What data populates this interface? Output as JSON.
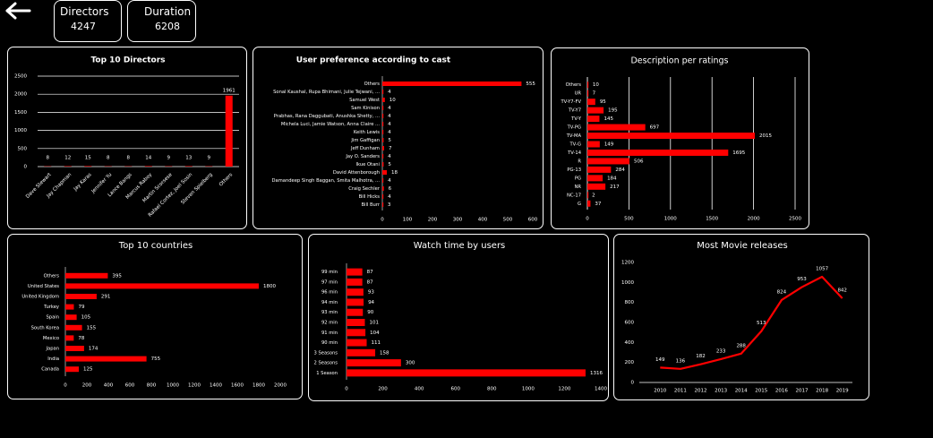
{
  "kpis": [
    {
      "label": "Directors",
      "value": "4247"
    },
    {
      "label": "Duration",
      "value": "6208"
    }
  ],
  "accent": "#ff0000",
  "chart_data": [
    {
      "id": "directors",
      "type": "bar",
      "orientation": "vertical",
      "title": "Top 10 Directors",
      "categories": [
        "Dave Stewart",
        "Jay Chapman",
        "Jay Karas",
        "Jennifer Yu",
        "Lance Bangs",
        "Marcus Raboy",
        "Martin Scorsese",
        "Rafael Cortez, Joel Sosin",
        "Steven Spielberg",
        "Others"
      ],
      "values": [
        8,
        12,
        15,
        8,
        8,
        14,
        9,
        13,
        9,
        1961
      ],
      "data_labels": [
        "8",
        "12",
        "15",
        "8",
        "8",
        "14",
        "9",
        "13",
        "9",
        "1961"
      ],
      "ylim": [
        0,
        2500
      ],
      "yticks": [
        0,
        500,
        1000,
        1500,
        2000,
        2500
      ]
    },
    {
      "id": "cast",
      "type": "bar",
      "orientation": "horizontal",
      "title": "User preference according to cast",
      "categories": [
        "Others",
        "Sonal Kaushal, Rupa Bhimani, Julie Tejwani, ...",
        "Samuel West",
        "Sam Kinison",
        "Prabhas, Rana Daggubati, Anushka Shetty, ...",
        "Michela Luci, Jamie Watson, Anna Claire ...",
        "Keith Lewis",
        "Jim Gaffigan",
        "Jeff Dunham",
        "Jay O. Sanders",
        "Ikue Otani",
        "David Attenborough",
        "Damandeep Singh Baggan, Smita Malhotra, ...",
        "Craig Sechler",
        "Bill Hicks",
        "Bill Burr"
      ],
      "values": [
        555,
        4,
        10,
        4,
        4,
        4,
        4,
        5,
        7,
        4,
        5,
        18,
        4,
        6,
        4,
        3
      ],
      "data_labels": [
        "555",
        "4",
        "10",
        "4",
        "4",
        "4",
        "4",
        "5",
        "7",
        "4",
        "5",
        "18",
        "4",
        "6",
        "4",
        "3"
      ],
      "xlim": [
        0,
        600
      ],
      "xticks": [
        0,
        100,
        200,
        300,
        400,
        500,
        600
      ]
    },
    {
      "id": "ratings",
      "type": "bar",
      "orientation": "horizontal",
      "title": "Description per ratings",
      "categories": [
        "Others",
        "UR",
        "TV-Y7-FV",
        "TV-Y7",
        "TV-Y",
        "TV-PG",
        "TV-MA",
        "TV-G",
        "TV-14",
        "R",
        "PG-13",
        "PG",
        "NR",
        "NC-17",
        "G"
      ],
      "values": [
        10,
        7,
        95,
        195,
        145,
        697,
        2015,
        149,
        1695,
        506,
        284,
        184,
        217,
        2,
        37
      ],
      "data_labels": [
        "10",
        "7",
        "95",
        "195",
        "145",
        "697",
        "2015",
        "149",
        "1695",
        "506",
        "284",
        "184",
        "217",
        "2",
        "37"
      ],
      "xlim": [
        0,
        2500
      ],
      "xticks": [
        0,
        500,
        1000,
        1500,
        2000,
        2500
      ]
    },
    {
      "id": "countries",
      "type": "bar",
      "orientation": "horizontal",
      "title": "Top 10 countries",
      "categories": [
        "Others",
        "United States",
        "United Kingdom",
        "Turkey",
        "Spain",
        "South Korea",
        "Mexico",
        "Japan",
        "India",
        "Canada"
      ],
      "values": [
        395,
        1800,
        291,
        79,
        105,
        155,
        78,
        174,
        755,
        125
      ],
      "data_labels": [
        "395",
        "1800",
        "291",
        "79",
        "105",
        "155",
        "78",
        "174",
        "755",
        "125"
      ],
      "xlim": [
        0,
        2000
      ],
      "xticks": [
        0,
        200,
        400,
        600,
        800,
        1000,
        1200,
        1400,
        1600,
        1800,
        2000
      ]
    },
    {
      "id": "watchtime",
      "type": "bar",
      "orientation": "horizontal",
      "title": "Watch time by users",
      "categories": [
        "99 min",
        "97 min",
        "96 min",
        "94 min",
        "93 min",
        "92 min",
        "91 min",
        "90 min",
        "3 Seasons",
        "2 Seasons",
        "1 Season"
      ],
      "values": [
        87,
        87,
        93,
        94,
        90,
        101,
        104,
        111,
        158,
        300,
        1316
      ],
      "data_labels": [
        "87",
        "87",
        "93",
        "94",
        "90",
        "101",
        "104",
        "111",
        "158",
        "300",
        "1316"
      ],
      "xlim": [
        0,
        1400
      ],
      "xticks": [
        0,
        200,
        400,
        600,
        800,
        1000,
        1200,
        1400
      ]
    },
    {
      "id": "releases",
      "type": "line",
      "title": "Most Movie releases",
      "x": [
        "2010",
        "2011",
        "2012",
        "2013",
        "2014",
        "2015",
        "2016",
        "2017",
        "2018",
        "2019"
      ],
      "values": [
        149,
        136,
        182,
        233,
        288,
        513,
        824,
        953,
        1057,
        842
      ],
      "data_labels": [
        "149",
        "136",
        "182",
        "233",
        "288",
        "513",
        "824",
        "953",
        "1057",
        "842"
      ],
      "ylim": [
        0,
        1200
      ],
      "yticks": [
        0,
        200,
        400,
        600,
        800,
        1000,
        1200
      ]
    }
  ]
}
